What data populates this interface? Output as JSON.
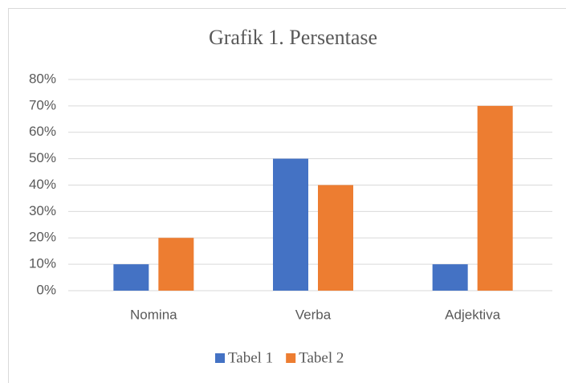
{
  "chart_data": {
    "type": "bar",
    "title": "Grafik 1. Persentase",
    "categories": [
      "Nomina",
      "Verba",
      "Adjektiva"
    ],
    "series": [
      {
        "name": "Tabel 1",
        "color": "#4472c4",
        "values": [
          10,
          50,
          10
        ]
      },
      {
        "name": "Tabel 2",
        "color": "#ed7d31",
        "values": [
          20,
          40,
          70
        ]
      }
    ],
    "ylim": [
      0,
      80
    ],
    "yticks": [
      {
        "value": 0,
        "label": "0%"
      },
      {
        "value": 10,
        "label": "10%"
      },
      {
        "value": 20,
        "label": "20%"
      },
      {
        "value": 30,
        "label": "30%"
      },
      {
        "value": 40,
        "label": "40%"
      },
      {
        "value": 50,
        "label": "50%"
      },
      {
        "value": 60,
        "label": "60%"
      },
      {
        "value": 70,
        "label": "70%"
      },
      {
        "value": 80,
        "label": "80%"
      }
    ],
    "grid": true,
    "legend": "bottom"
  }
}
